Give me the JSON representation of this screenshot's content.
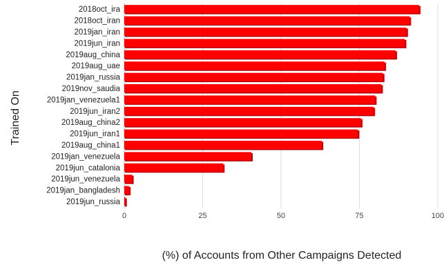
{
  "chart_data": {
    "type": "bar",
    "orientation": "horizontal",
    "title": "",
    "xlabel": "(%) of Accounts from Other Campaigns Detected",
    "ylabel": "Trained On",
    "xlim": [
      0,
      100
    ],
    "xticks": [
      "0",
      "25",
      "50",
      "75",
      "100"
    ],
    "grid": true,
    "legend": "none",
    "bar_color": "#ff0000",
    "bar_shadow_color": "#b3000a",
    "categories": [
      "2018oct_ira",
      "2018oct_iran",
      "2019jan_iran",
      "2019jun_iran",
      "2019aug_china",
      "2019aug_uae",
      "2019jan_russia",
      "2019nov_saudia",
      "2019jan_venezuela1",
      "2019jun_iran2",
      "2019aug_china2",
      "2019jun_iran1",
      "2019aug_china1",
      "2019jan_venezuela",
      "2019jun_catalonia",
      "2019jun_venezuela",
      "2019jan_bangladesh",
      "2019jun_russia"
    ],
    "values": [
      94,
      91,
      90,
      89.5,
      86.5,
      83,
      82.5,
      82,
      80,
      79.5,
      75.5,
      74.5,
      63,
      40.5,
      31.5,
      2.5,
      1.5,
      0.3
    ]
  }
}
